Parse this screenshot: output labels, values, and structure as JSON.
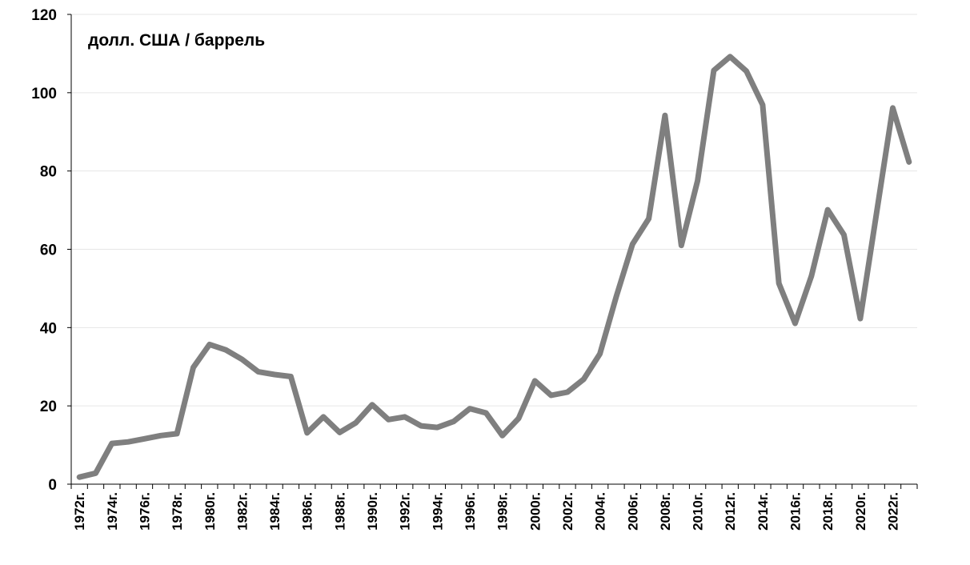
{
  "chart_data": {
    "type": "line",
    "title": "",
    "unit_label": "долл. США / баррель",
    "xlabel": "",
    "ylabel": "",
    "ylim": [
      0,
      120
    ],
    "y_ticks": [
      0,
      20,
      40,
      60,
      80,
      100,
      120
    ],
    "grid": "horizontal",
    "line_color": "#7f7f7f",
    "x_tick_labels": [
      "1972г.",
      "1974г.",
      "1976г.",
      "1978г.",
      "1980г.",
      "1982г.",
      "1984г.",
      "1986г.",
      "1988г.",
      "1990г.",
      "1992г.",
      "1994г.",
      "1996г.",
      "1998г.",
      "2000г.",
      "2002г.",
      "2004г.",
      "2006г.",
      "2008г.",
      "2010г.",
      "2012г.",
      "2014г.",
      "2016г.",
      "2018г.",
      "2020г.",
      "2022г."
    ],
    "series": [
      {
        "x": [
          1972,
          1973,
          1974,
          1975,
          1976,
          1977,
          1978,
          1979,
          1980,
          1981,
          1982,
          1983,
          1984,
          1985,
          1986,
          1987,
          1988,
          1989,
          1990,
          1991,
          1992,
          1993,
          1994,
          1995,
          1996,
          1997,
          1998,
          1999,
          2000,
          2001,
          2002,
          2003,
          2004,
          2005,
          2006,
          2007,
          2008,
          2009,
          2010,
          2011,
          2012,
          2013,
          2014,
          2015,
          2016,
          2017,
          2018,
          2019,
          2020,
          2021,
          2022,
          2023
        ],
        "values": [
          1.8,
          2.8,
          10.4,
          10.8,
          11.6,
          12.4,
          12.9,
          29.8,
          35.7,
          34.3,
          31.9,
          28.7,
          28.0,
          27.5,
          13.1,
          17.2,
          13.2,
          15.7,
          20.3,
          16.5,
          17.2,
          14.9,
          14.5,
          16.0,
          19.3,
          18.2,
          12.4,
          16.8,
          26.4,
          22.7,
          23.5,
          26.8,
          33.3,
          47.9,
          61.3,
          67.8,
          94.2,
          61.0,
          77.5,
          105.7,
          109.2,
          105.5,
          96.9,
          51.3,
          41.1,
          53.2,
          70.1,
          63.7,
          42.3,
          69.2,
          96.1,
          82.3
        ]
      }
    ]
  }
}
